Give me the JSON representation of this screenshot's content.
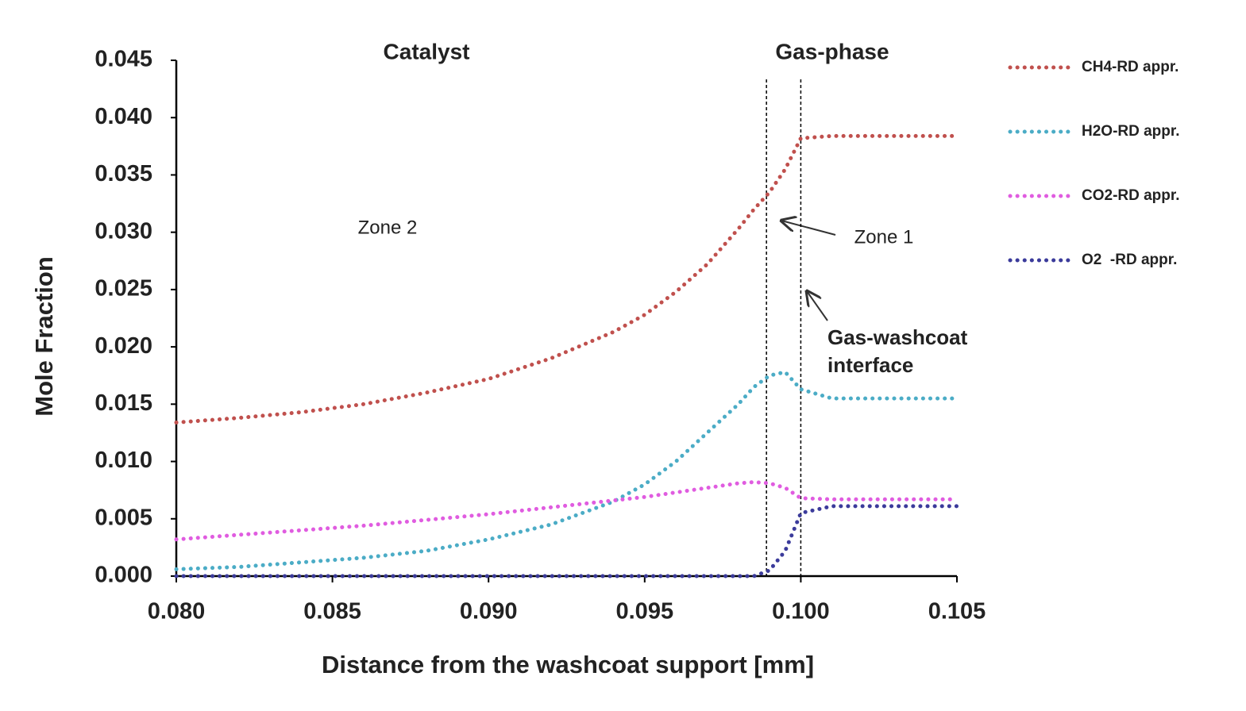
{
  "chart_data": {
    "type": "line",
    "x_label": "Distance from the washcoat support [mm]",
    "y_label": "Mole Fraction",
    "x": [
      0.08,
      0.082,
      0.084,
      0.086,
      0.088,
      0.09,
      0.092,
      0.094,
      0.095,
      0.096,
      0.097,
      0.098,
      0.0985,
      0.099,
      0.0995,
      0.1,
      0.101,
      0.102,
      0.103,
      0.104,
      0.105
    ],
    "series": [
      {
        "name": "CH4-RD appr.",
        "color": "#c0504d",
        "values": [
          0.0134,
          0.0138,
          0.0143,
          0.015,
          0.016,
          0.0172,
          0.019,
          0.0213,
          0.0228,
          0.0248,
          0.0272,
          0.0303,
          0.032,
          0.0335,
          0.0355,
          0.0382,
          0.0384,
          0.0384,
          0.0384,
          0.0384,
          0.0384
        ]
      },
      {
        "name": "H2O-RD appr.",
        "color": "#4bacc6",
        "values": [
          0.0006,
          0.0008,
          0.0012,
          0.0016,
          0.0022,
          0.0032,
          0.0045,
          0.0065,
          0.008,
          0.01,
          0.0125,
          0.015,
          0.0165,
          0.0175,
          0.0178,
          0.0163,
          0.0155,
          0.0155,
          0.0155,
          0.0155,
          0.0155
        ]
      },
      {
        "name": "CO2-RD appr.",
        "color": "#e05ce0",
        "values": [
          0.0032,
          0.0036,
          0.004,
          0.0044,
          0.0049,
          0.0054,
          0.006,
          0.0066,
          0.0069,
          0.0073,
          0.0077,
          0.0081,
          0.0082,
          0.0081,
          0.0077,
          0.0068,
          0.0067,
          0.0067,
          0.0067,
          0.0067,
          0.0067
        ]
      },
      {
        "name": "O2  -RD appr.",
        "color": "#3b3b9b",
        "values": [
          0.0,
          0.0,
          0.0,
          0.0,
          0.0,
          0.0,
          0.0,
          0.0,
          0.0,
          0.0,
          0.0,
          0.0,
          0.0,
          0.0005,
          0.0022,
          0.0055,
          0.0061,
          0.0061,
          0.0061,
          0.0061,
          0.0061
        ]
      }
    ],
    "vlines": [
      0.0989,
      0.1
    ],
    "annotations": [
      "Catalyst",
      "Gas-phase",
      "Zone 2",
      "Zone 1",
      "Gas-washcoat interface"
    ],
    "xlim": [
      0.08,
      0.105
    ],
    "xticks": [
      {
        "value": 0.08,
        "label": "0.080"
      },
      0.085,
      {
        "value": 0.09,
        "label": "0.090"
      },
      0.095,
      {
        "value": 0.1,
        "label": "0.100"
      },
      0.105
    ],
    "ylim": [
      0,
      0.045
    ],
    "yticks": [
      {
        "value": 0,
        "label": "0.000"
      },
      0.005,
      {
        "value": 0.01,
        "label": "0.010"
      },
      0.015,
      {
        "value": 0.02,
        "label": "0.020"
      },
      0.025,
      {
        "value": 0.03,
        "label": "0.030"
      },
      0.035,
      {
        "value": 0.04,
        "label": "0.040"
      },
      0.045
    ],
    "grid": false,
    "legend": "right"
  }
}
